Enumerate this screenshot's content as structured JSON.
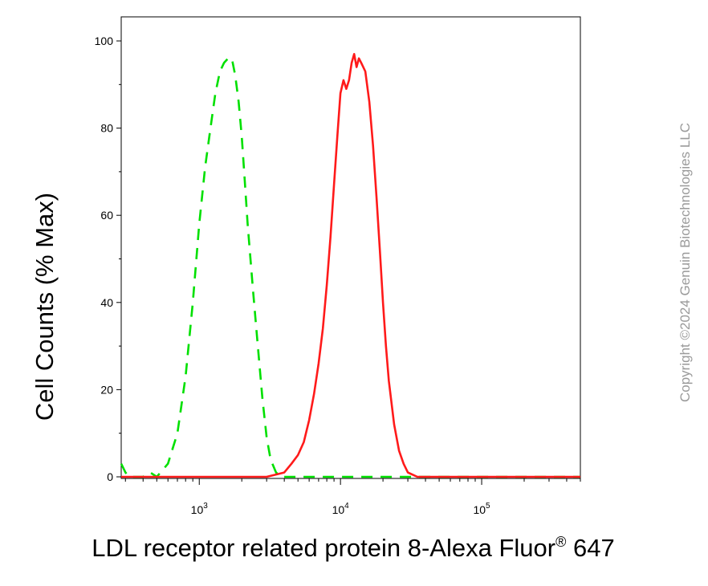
{
  "chart_data": {
    "type": "line",
    "xscale": "log",
    "xlim": [
      280,
      500000
    ],
    "ylim": [
      0,
      100
    ],
    "ylabel": "Cell Counts (% Max)",
    "xlabel": {
      "main": "LDL receptor related protein 8-Alexa Fluor",
      "sup": "®",
      "suffix": " 647"
    },
    "yticks": [
      0,
      20,
      40,
      60,
      80,
      100
    ],
    "yticks_labels": [
      "0",
      "20",
      "40",
      "60",
      "80",
      "100"
    ],
    "xticks_major": [
      1000,
      10000,
      100000
    ],
    "xticks_labels": [
      {
        "base": "10",
        "exp": "3"
      },
      {
        "base": "10",
        "exp": "4"
      },
      {
        "base": "10",
        "exp": "5"
      }
    ],
    "grid": false,
    "legend": "none",
    "series": [
      {
        "color": "#00e000",
        "style": "dashed",
        "x": [
          280,
          300,
          320,
          350,
          400,
          450,
          500,
          600,
          700,
          800,
          900,
          1000,
          1100,
          1200,
          1300,
          1400,
          1500,
          1600,
          1700,
          1800,
          1900,
          2000,
          2100,
          2200,
          2400,
          2600,
          2800,
          3000,
          3200,
          3500,
          3800,
          4200,
          5000,
          8000,
          20000,
          50000,
          500000
        ],
        "y": [
          3,
          1,
          0,
          0,
          0,
          1,
          0,
          3,
          10,
          23,
          40,
          58,
          71,
          80,
          88,
          93,
          95,
          96,
          96,
          92,
          86,
          78,
          68,
          58,
          43,
          30,
          18,
          9,
          4,
          1,
          0,
          0,
          0,
          0,
          0,
          0,
          0
        ]
      },
      {
        "color": "#ff1a1a",
        "style": "solid",
        "x": [
          280,
          1000,
          3000,
          4000,
          4500,
          5000,
          5500,
          6000,
          6500,
          7000,
          7500,
          8000,
          8500,
          9000,
          9500,
          10000,
          10500,
          11000,
          11500,
          12000,
          12500,
          13000,
          13500,
          14000,
          15000,
          16000,
          17000,
          18000,
          19000,
          20000,
          21000,
          22000,
          24000,
          26000,
          28000,
          30000,
          35000,
          40000,
          50000,
          500000
        ],
        "y": [
          0,
          0,
          0,
          1,
          3,
          5,
          8,
          13,
          19,
          26,
          34,
          44,
          55,
          67,
          78,
          88,
          91,
          89,
          91,
          95,
          97,
          94,
          96,
          95,
          93,
          86,
          76,
          64,
          52,
          40,
          30,
          22,
          12,
          6,
          3,
          1,
          0,
          0,
          0,
          0
        ]
      }
    ]
  },
  "watermark": "Copyright ©2024 Genuin Biotechnologies LLC"
}
